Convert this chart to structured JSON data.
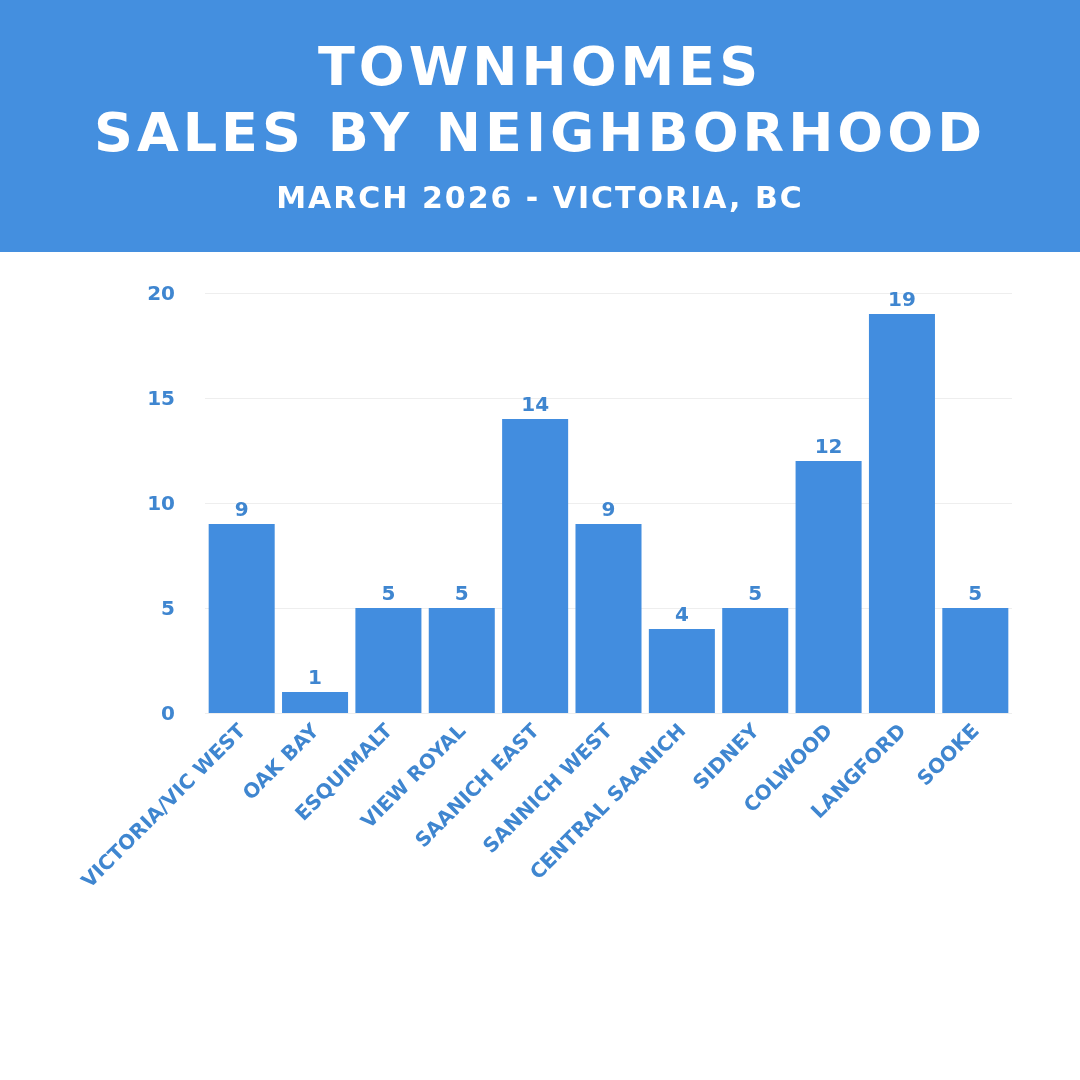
{
  "chart_data": {
    "type": "bar",
    "title": "TOWNHOMES\nSALES BY NEIGHBORHOOD",
    "subtitle": "MARCH 2026 - VICTORIA, BC",
    "categories": [
      "VICTORIA/VIC WEST",
      "OAK BAY",
      "ESQUIMALT",
      "VIEW ROYAL",
      "SAANICH EAST",
      "SANNICH WEST",
      "CENTRAL SAANICH",
      "SIDNEY",
      "COLWOOD",
      "LANGFORD",
      "SOOKE"
    ],
    "values": [
      9,
      1,
      5,
      5,
      14,
      9,
      4,
      5,
      12,
      19,
      5
    ],
    "color": "#428ddf",
    "ylim": [
      0,
      20
    ],
    "yticks": [
      0,
      5,
      10,
      15,
      20
    ],
    "grid": "y",
    "data_labels": true
  }
}
